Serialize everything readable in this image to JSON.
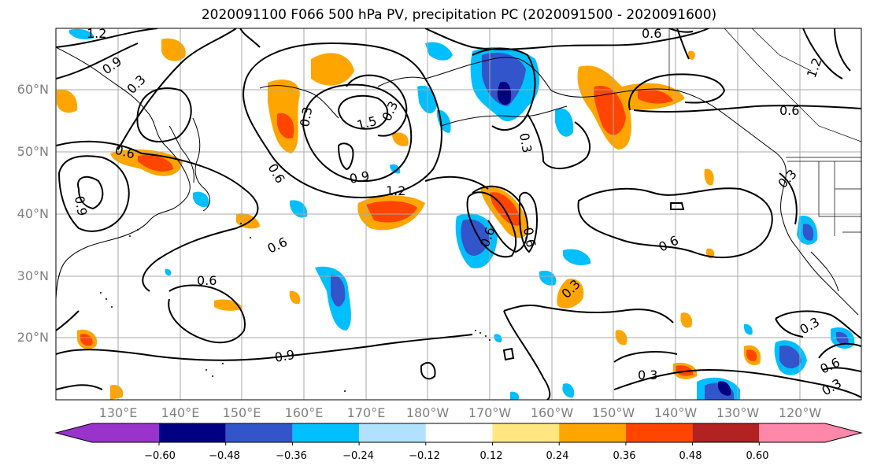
{
  "title": "2020091100 F066 500 hPa PV, precipitation PC (2020091500 - 2020091600)",
  "lat_labels": [
    "60°N",
    "50°N",
    "40°N",
    "30°N",
    "20°N"
  ],
  "lon_labels": [
    "130°E",
    "140°E",
    "150°E",
    "160°E",
    "170°E",
    "180°W",
    "170°W",
    "160°W",
    "150°W",
    "140°W",
    "130°W",
    "120°W"
  ],
  "colorbar": {
    "ticks": [
      "−0.60",
      "−0.48",
      "−0.36",
      "−0.24",
      "−0.12",
      "0.12",
      "0.24",
      "0.36",
      "0.48",
      "0.60"
    ],
    "colors": [
      "#9933cc",
      "#000080",
      "#3355cc",
      "#00bfff",
      "#b0e2ff",
      "#ffffff",
      "#ffe680",
      "#ffa500",
      "#ff4500",
      "#b22222",
      "#ff88aa"
    ]
  },
  "contour_labels": [
    "0.6",
    "0.9",
    "0.3",
    "1.2",
    "1.5",
    "0.9",
    "0.6",
    "0.6",
    "0.9",
    "1.2",
    "0.3",
    "0.3",
    "0.6",
    "0.6",
    "0.9",
    "0.6",
    "0.6",
    "0.3",
    "0.6",
    "0.3",
    "0.3",
    "0.6",
    "0.3",
    "0.3",
    "0.3",
    "0.6",
    "1.2",
    "0.9",
    "0.9",
    "0.3",
    "0.6",
    "0.3"
  ]
}
